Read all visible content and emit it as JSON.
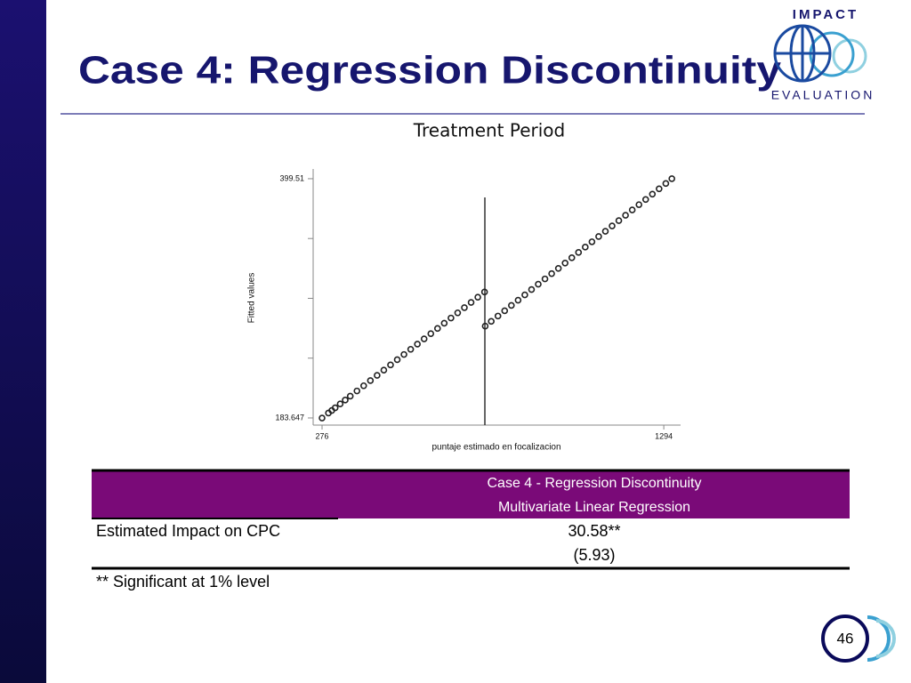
{
  "title": "Case 4: Regression Discontinuity",
  "logo": {
    "top": "IMPACT",
    "bottom": "EVALUATION"
  },
  "chart_data": {
    "type": "scatter",
    "title": "Treatment Period",
    "x_label": "puntaje estimado en focalizacion",
    "y_label": "Fitted values",
    "x": [
      276,
      295,
      305,
      315,
      330,
      345,
      360,
      380,
      400,
      420,
      440,
      460,
      480,
      500,
      520,
      540,
      560,
      580,
      600,
      620,
      640,
      660,
      680,
      700,
      720,
      740,
      760,
      762,
      780,
      800,
      820,
      840,
      860,
      880,
      900,
      920,
      940,
      960,
      980,
      1000,
      1020,
      1040,
      1060,
      1080,
      1100,
      1120,
      1140,
      1160,
      1180,
      1200,
      1220,
      1240,
      1260,
      1280,
      1300,
      1318
    ],
    "values": [
      183.6,
      188.1,
      190.4,
      192.8,
      196.3,
      199.8,
      203.3,
      208.0,
      212.7,
      217.4,
      222.1,
      226.8,
      231.5,
      236.2,
      240.9,
      245.6,
      250.3,
      255.0,
      259.7,
      264.4,
      269.1,
      273.8,
      278.5,
      283.2,
      287.9,
      292.6,
      297.3,
      266.5,
      270.8,
      275.6,
      280.4,
      285.2,
      289.9,
      294.7,
      299.5,
      304.3,
      309.1,
      313.9,
      318.6,
      323.4,
      328.2,
      333.0,
      337.8,
      342.6,
      347.4,
      352.1,
      356.9,
      361.7,
      366.5,
      371.3,
      376.1,
      380.8,
      385.6,
      390.4,
      395.2,
      399.5
    ],
    "color": "#222222",
    "cutoff": 761,
    "xlim": [
      249.5,
      1344
    ],
    "xticks": [
      276,
      1294
    ],
    "ylim": [
      177.2,
      408.3
    ],
    "yticks": [
      183.647,
      399.51
    ],
    "yminor_ticks": [
      237.613,
      291.579,
      345.544
    ]
  },
  "table": {
    "header": [
      "Case 4 - Regression Discontinuity",
      "Multivariate Linear Regression"
    ],
    "rows": [
      [
        "Estimated Impact on CPC",
        "30.58**",
        "(5.93)"
      ]
    ],
    "footnote": "** Significant at 1% level"
  },
  "page_number": "46"
}
